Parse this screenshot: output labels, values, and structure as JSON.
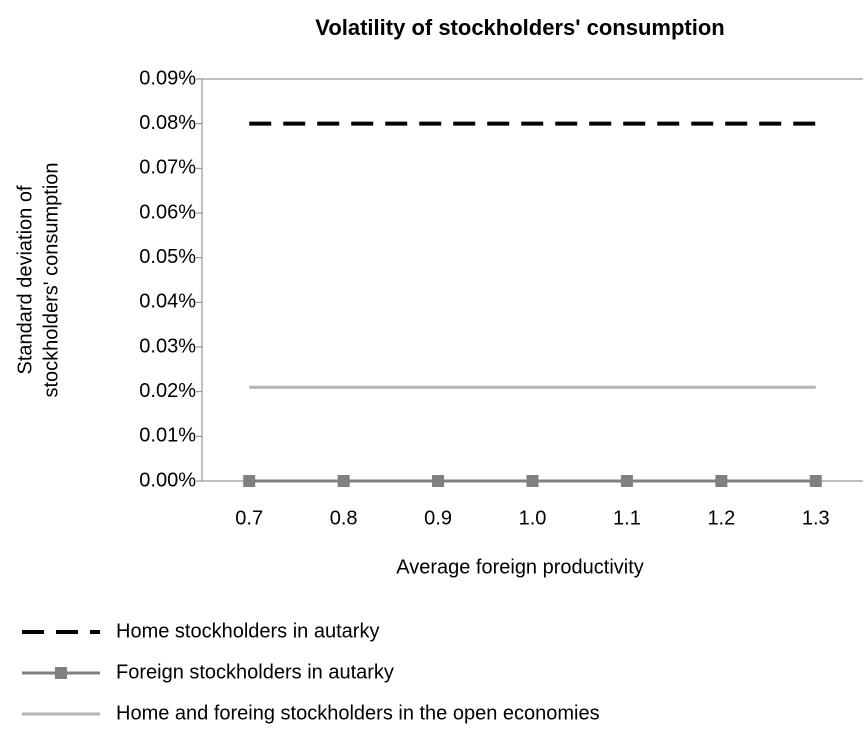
{
  "chart_data": {
    "type": "line",
    "title": "Volatility of stockholders' consumption",
    "ylabel": [
      "Standard deviation of",
      "stockholders' consumption"
    ],
    "xlabel": "Average foreign productivity",
    "categories": [
      "0.7",
      "0.8",
      "0.9",
      "1.0",
      "1.1",
      "1.2",
      "1.3"
    ],
    "series": [
      {
        "name": "Home stockholders in autarky",
        "color": "#000000",
        "dashed": true,
        "marker": "none",
        "values": [
          0.08,
          0.08,
          0.08,
          0.08,
          0.08,
          0.08,
          0.08
        ]
      },
      {
        "name": "Foreign stockholders in autarky",
        "color": "#808080",
        "dashed": false,
        "marker": "square",
        "values": [
          0,
          0,
          0,
          0,
          0,
          0,
          0
        ]
      },
      {
        "name": "Home and foreing stockholders in the open economies",
        "color": "#b3b3b3",
        "dashed": false,
        "marker": "none",
        "values": [
          0.021,
          0.021,
          0.021,
          0.021,
          0.021,
          0.021,
          0.021
        ]
      }
    ],
    "ylim": [
      0,
      0.09
    ],
    "yticks": [
      {
        "value": 0,
        "label": "0.00%"
      },
      {
        "value": 0.01,
        "label": "0.01%"
      },
      {
        "value": 0.02,
        "label": "0.02%"
      },
      {
        "value": 0.03,
        "label": "0.03%"
      },
      {
        "value": 0.04,
        "label": "0.04%"
      },
      {
        "value": 0.05,
        "label": "0.05%"
      },
      {
        "value": 0.06,
        "label": "0.06%"
      },
      {
        "value": 0.07,
        "label": "0.07%"
      },
      {
        "value": 0.08,
        "label": "0.08%"
      },
      {
        "value": 0.09,
        "label": "0.09%"
      }
    ],
    "grid": false,
    "legend": "bottom"
  }
}
